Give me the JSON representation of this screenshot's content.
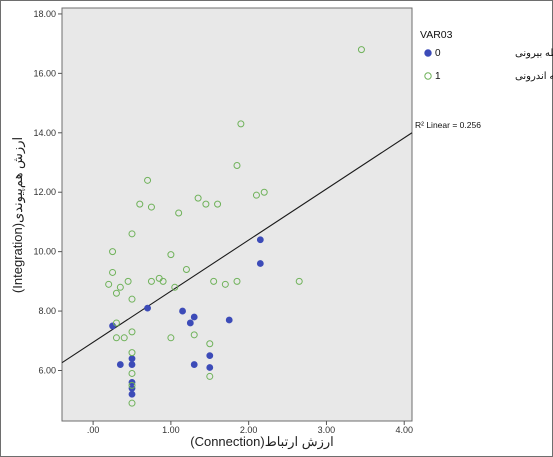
{
  "chart_data": {
    "type": "scatter",
    "xlabel": "ارزش ارتباط(Connection)",
    "ylabel": "ارزش هم‌پیوندی(Integration)",
    "xlim": [
      -0.4,
      4.1
    ],
    "ylim": [
      4.3,
      18.2
    ],
    "x_ticks": [
      {
        "value": 0,
        "label": ".00"
      },
      {
        "value": 1,
        "label": "1.00"
      },
      {
        "value": 2,
        "label": "2.00"
      },
      {
        "value": 3,
        "label": "3.00"
      },
      {
        "value": 4,
        "label": "4.00"
      }
    ],
    "y_ticks": [
      {
        "value": 6,
        "label": "6.00"
      },
      {
        "value": 8,
        "label": "8.00"
      },
      {
        "value": 10,
        "label": "10.00"
      },
      {
        "value": 12,
        "label": "12.00"
      },
      {
        "value": 14,
        "label": "14.00"
      },
      {
        "value": 16,
        "label": "16.00"
      },
      {
        "value": 18,
        "label": "18.00"
      }
    ],
    "grid": false,
    "legend": {
      "title": "VAR03",
      "placement": "right",
      "entries": [
        {
          "code": "0",
          "label": "حیطه بیرونی",
          "marker": "filled-circle",
          "color": "#3c4bb8"
        },
        {
          "code": "1",
          "label": "حیطه اندرونی",
          "marker": "open-circle",
          "color": "#6fb25a"
        }
      ]
    },
    "fit_line": {
      "label": "R² Linear = 0.256",
      "intercept": 6.95,
      "slope": 1.72,
      "x_range": [
        -0.4,
        4.1
      ]
    },
    "series": [
      {
        "name": "حیطه بیرونی",
        "code": "0",
        "marker": "filled",
        "color": "#3c4bb8",
        "points": [
          [
            0.25,
            7.5
          ],
          [
            0.35,
            6.2
          ],
          [
            0.5,
            6.4
          ],
          [
            0.5,
            6.2
          ],
          [
            0.5,
            5.6
          ],
          [
            0.5,
            5.4
          ],
          [
            0.5,
            5.2
          ],
          [
            0.7,
            8.1
          ],
          [
            1.15,
            8.0
          ],
          [
            1.25,
            7.6
          ],
          [
            1.3,
            7.8
          ],
          [
            1.3,
            6.2
          ],
          [
            1.5,
            6.1
          ],
          [
            1.5,
            6.5
          ],
          [
            1.75,
            7.7
          ],
          [
            2.15,
            10.4
          ],
          [
            2.15,
            9.6
          ]
        ]
      },
      {
        "name": "حیطه اندرونی",
        "code": "1",
        "marker": "open",
        "color": "#6fb25a",
        "points": [
          [
            0.2,
            8.9
          ],
          [
            0.25,
            9.3
          ],
          [
            0.25,
            10.0
          ],
          [
            0.3,
            8.6
          ],
          [
            0.3,
            7.6
          ],
          [
            0.3,
            7.1
          ],
          [
            0.35,
            8.8
          ],
          [
            0.4,
            7.1
          ],
          [
            0.45,
            9.0
          ],
          [
            0.5,
            10.6
          ],
          [
            0.5,
            8.4
          ],
          [
            0.5,
            7.3
          ],
          [
            0.5,
            6.6
          ],
          [
            0.5,
            5.9
          ],
          [
            0.5,
            5.5
          ],
          [
            0.5,
            4.9
          ],
          [
            0.6,
            11.6
          ],
          [
            0.7,
            12.4
          ],
          [
            0.75,
            11.5
          ],
          [
            0.75,
            9.0
          ],
          [
            0.85,
            9.1
          ],
          [
            0.9,
            9.0
          ],
          [
            1.0,
            9.9
          ],
          [
            1.0,
            7.1
          ],
          [
            1.05,
            8.8
          ],
          [
            1.1,
            11.3
          ],
          [
            1.2,
            9.4
          ],
          [
            1.3,
            7.2
          ],
          [
            1.35,
            11.8
          ],
          [
            1.45,
            11.6
          ],
          [
            1.5,
            6.9
          ],
          [
            1.5,
            5.8
          ],
          [
            1.55,
            9.0
          ],
          [
            1.6,
            11.6
          ],
          [
            1.7,
            8.9
          ],
          [
            1.85,
            9.0
          ],
          [
            1.85,
            12.9
          ],
          [
            1.9,
            14.3
          ],
          [
            2.1,
            11.9
          ],
          [
            2.2,
            12.0
          ],
          [
            2.65,
            9.0
          ],
          [
            3.45,
            16.8
          ]
        ]
      }
    ]
  }
}
